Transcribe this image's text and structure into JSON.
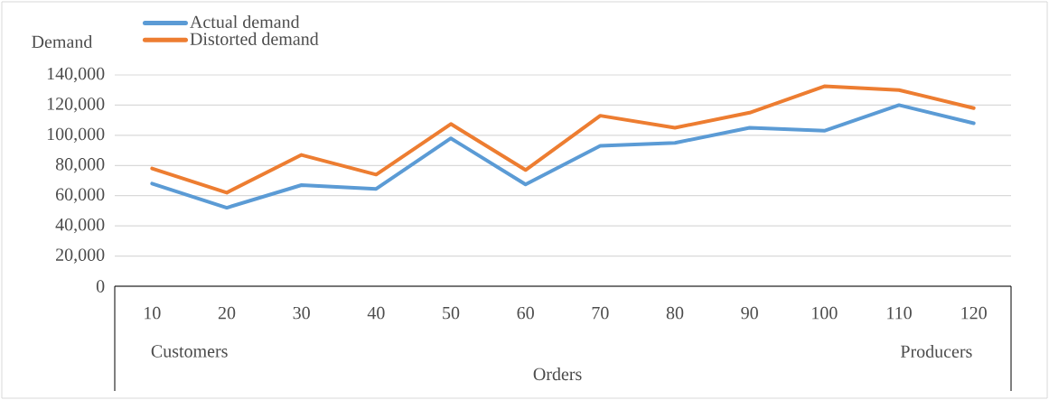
{
  "chart_data": {
    "type": "line",
    "xlabel": "Orders",
    "ylabel": "Demand",
    "categories": [
      "10",
      "20",
      "30",
      "40",
      "50",
      "60",
      "70",
      "80",
      "90",
      "100",
      "110",
      "120"
    ],
    "series": [
      {
        "name": "Actual demand",
        "color": "#5b9bd5",
        "values": [
          68000,
          52000,
          67000,
          64500,
          98000,
          67500,
          93000,
          95000,
          105000,
          103000,
          120000,
          108000
        ]
      },
      {
        "name": "Distorted demand",
        "color": "#ed7d31",
        "values": [
          78000,
          62000,
          87000,
          74000,
          107500,
          77000,
          113000,
          105000,
          115000,
          132500,
          130000,
          118000
        ]
      }
    ],
    "ylim": [
      0,
      140000
    ],
    "yticks": [
      0,
      {
        "value": 20000,
        "label": "20,000"
      },
      {
        "value": 40000,
        "label": "40,000"
      },
      {
        "value": 60000,
        "label": "60,000"
      },
      {
        "value": 80000,
        "label": "80,000"
      },
      {
        "value": 100000,
        "label": "100,000"
      },
      {
        "value": 120000,
        "label": "120,000"
      },
      {
        "value": 140000,
        "label": "140,000"
      }
    ],
    "grid": "y",
    "legend": "top left",
    "marker": "none",
    "line_style": "solid",
    "annotations": [
      "Customers",
      "Producers"
    ]
  }
}
